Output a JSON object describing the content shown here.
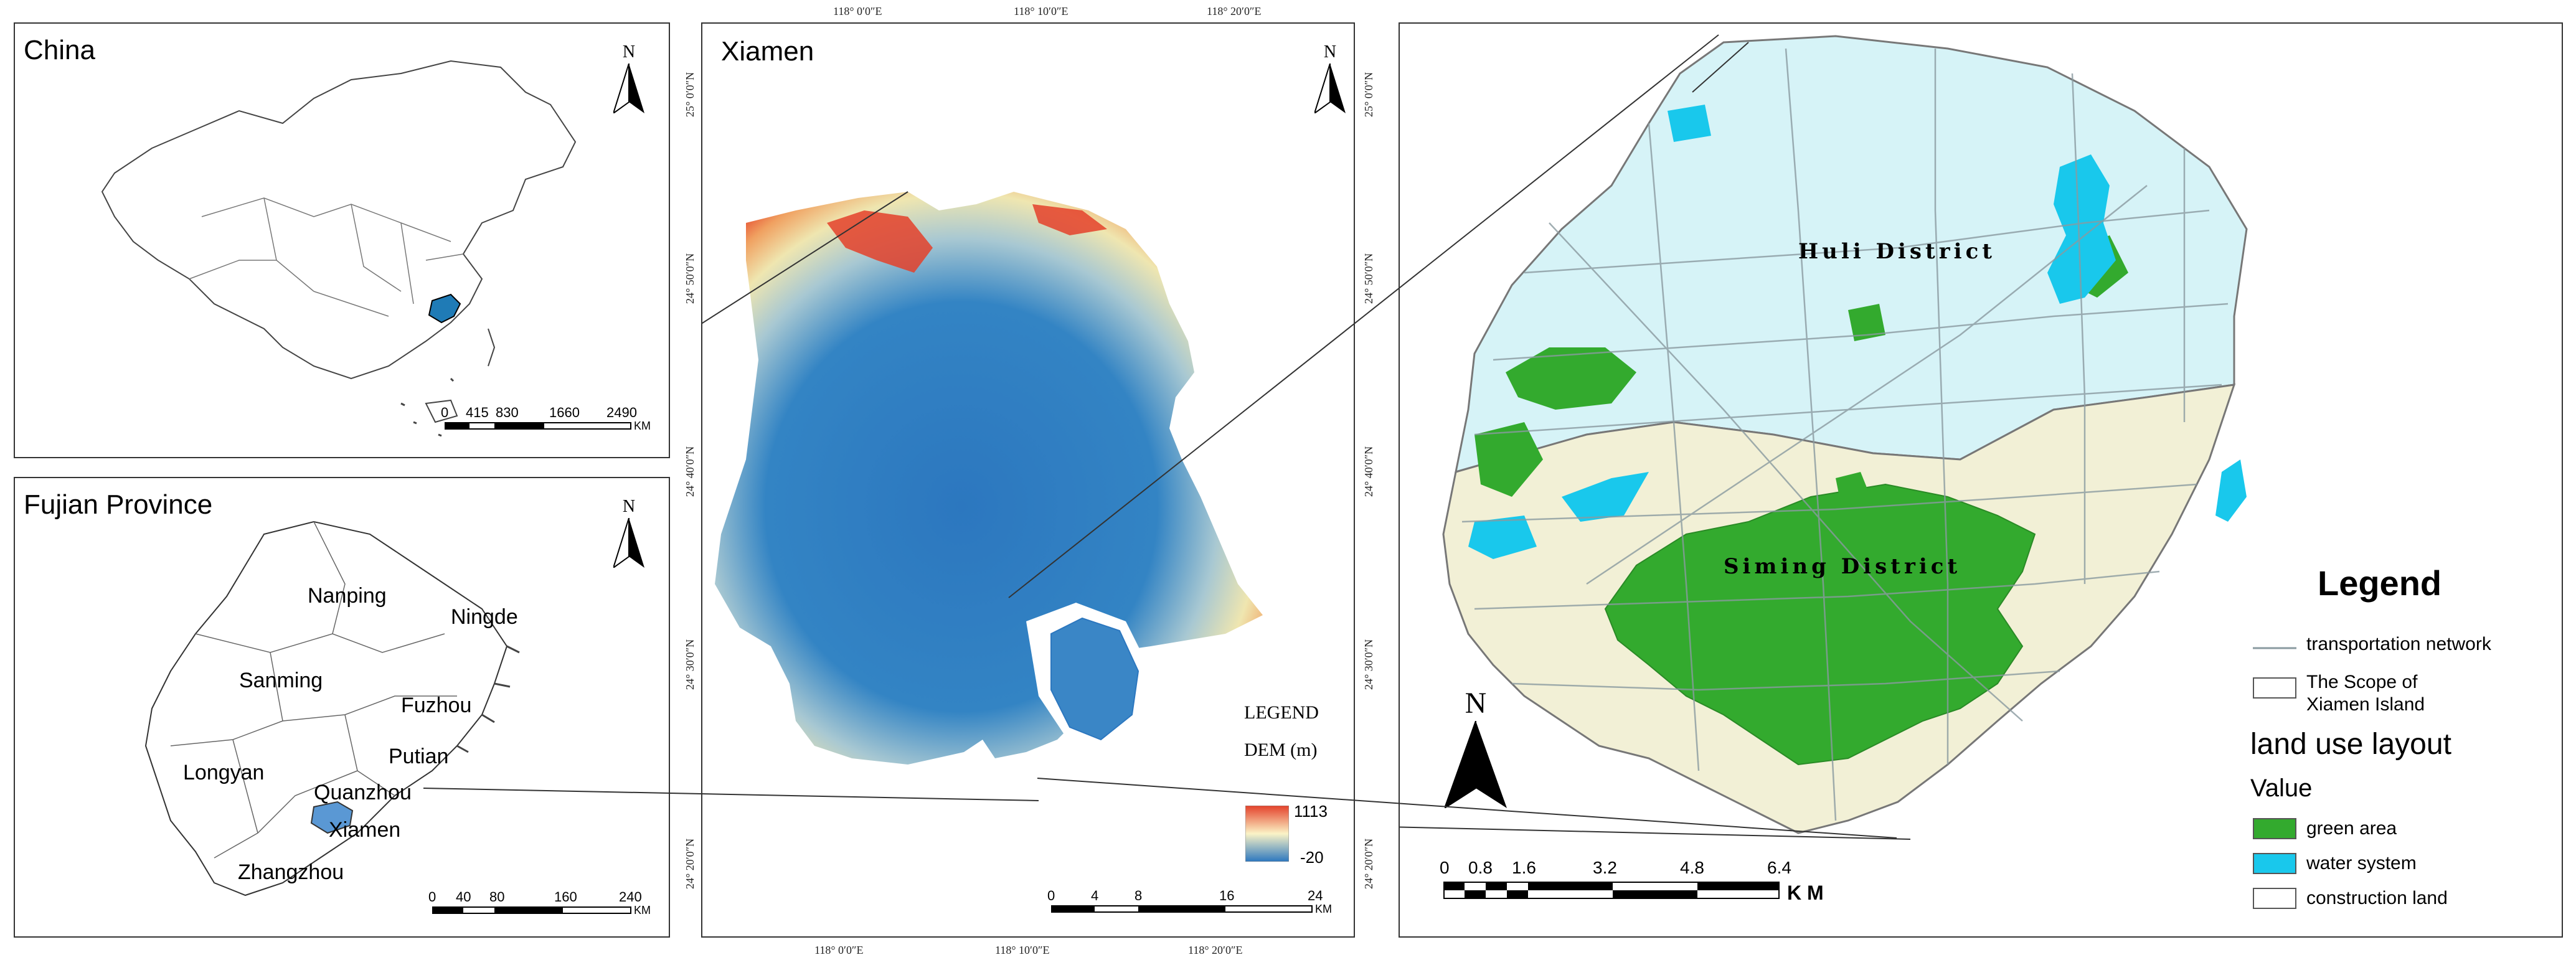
{
  "panels": {
    "china": {
      "title": "China",
      "north": "N",
      "scale_ticks": [
        "0",
        "415",
        "830",
        "1660",
        "2490"
      ],
      "scale_unit": "KM"
    },
    "fujian": {
      "title": "Fujian Province",
      "north": "N",
      "cities": [
        "Nanping",
        "Ningde",
        "Sanming",
        "Fuzhou",
        "Putian",
        "Longyan",
        "Quanzhou",
        "Xiamen",
        "Zhangzhou"
      ],
      "scale_ticks": [
        "0",
        "40",
        "80",
        "160",
        "240"
      ],
      "scale_unit": "KM"
    },
    "xiamen": {
      "title": "Xiamen",
      "north": "N",
      "top_coords": [
        "118° 0′0″E",
        "118° 10′0″E",
        "118° 20′0″E"
      ],
      "bottom_coords": [
        "118° 0′0″E",
        "118° 10′0″E",
        "118° 20′0″E"
      ],
      "left_coords": [
        "25° 0′0″N",
        "24° 50′0″N",
        "24° 40′0″N",
        "24° 30′0″N",
        "24° 20′0″N"
      ],
      "right_coords": [
        "25° 0′0″N",
        "24° 50′0″N",
        "24° 40′0″N",
        "24° 30′0″N",
        "24° 20′0″N"
      ],
      "legend_title": "LEGEND",
      "legend_sub": "DEM (m)",
      "dem_max": "1113",
      "dem_min": "-20",
      "scale_ticks": [
        "0",
        "4",
        "8",
        "16",
        "24"
      ],
      "scale_unit": "KM"
    },
    "island": {
      "north": "N",
      "districts": [
        "Huli District",
        "Siming District"
      ],
      "scale_ticks": [
        "0",
        "0.8",
        "1.6",
        "3.2",
        "4.8",
        "6.4"
      ],
      "scale_unit": "K M",
      "legend": {
        "title": "Legend",
        "items": [
          {
            "label": "transportation network"
          },
          {
            "label": "The Scope of Xiamen Island"
          }
        ],
        "section": "land use layout",
        "value_label": "Value",
        "classes": [
          {
            "label": "green area",
            "color": "#33aa2e"
          },
          {
            "label": "water system",
            "color": "#19c8ec"
          },
          {
            "label": "construction land",
            "color": "#ffffff"
          }
        ]
      }
    }
  },
  "colors": {
    "huli": "#d6f3f7",
    "siming": "#f2f0d6",
    "green": "#33aa2e",
    "water": "#19c8ec",
    "dem_low": "#2c77bf",
    "dem_high": "#e4412a",
    "fujian_highlight": "#1f7bb6"
  }
}
